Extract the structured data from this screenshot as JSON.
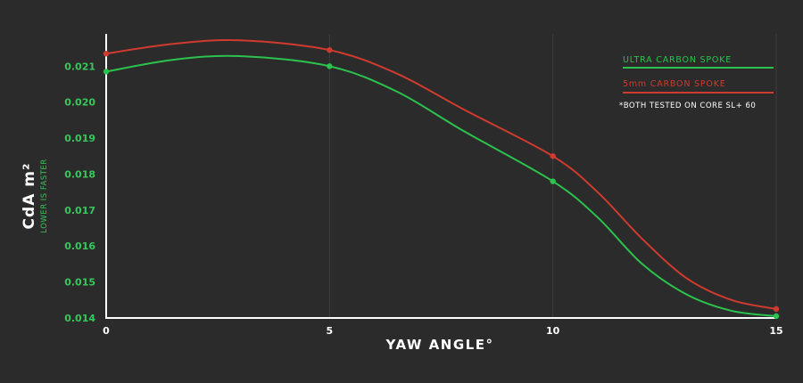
{
  "colors": {
    "background": "#2b2b2b",
    "axis": "#ffffff",
    "grid": "#3e3e3e",
    "green": "#2bc24d",
    "red": "#cf3b2e",
    "tick_green": "#36c85a",
    "text_white": "#ffffff"
  },
  "chart_data": {
    "type": "line",
    "xlabel": "YAW ANGLE°",
    "ylabel": "CdA m²",
    "ysublabel": "LOWER IS FASTER",
    "note": "*BOTH TESTED ON CORE SL+ 60",
    "xlim": [
      0,
      15
    ],
    "ylim": [
      0.014,
      0.0219
    ],
    "x_ticks": [
      0,
      5,
      10,
      15
    ],
    "x_tick_labels": [
      "0",
      "5",
      "10",
      "15"
    ],
    "y_ticks": [
      0.014,
      0.015,
      0.016,
      0.017,
      0.018,
      0.019,
      0.02,
      0.021
    ],
    "y_tick_labels": [
      "0.014",
      "0.015",
      "0.016",
      "0.017",
      "0.018",
      "0.019",
      "0.020",
      "0.021"
    ],
    "grid": "vertical",
    "legend_position": "top-right",
    "series": [
      {
        "name": "ULTRA CARBON SPOKE",
        "color": "#2bc24d",
        "x": [
          0,
          5,
          10,
          15
        ],
        "y": [
          0.02085,
          0.021,
          0.0178,
          0.01405
        ],
        "curve": [
          [
            0,
            0.02085
          ],
          [
            1.5,
            0.02118
          ],
          [
            3,
            0.02128
          ],
          [
            5,
            0.021
          ],
          [
            6.5,
            0.0203
          ],
          [
            8,
            0.0192
          ],
          [
            10,
            0.0178
          ],
          [
            11,
            0.0168
          ],
          [
            12,
            0.0155
          ],
          [
            13,
            0.01465
          ],
          [
            14,
            0.0142
          ],
          [
            15,
            0.01405
          ]
        ]
      },
      {
        "name": "5mm CARBON SPOKE",
        "color": "#cf3b2e",
        "x": [
          0,
          5,
          10,
          15
        ],
        "y": [
          0.02135,
          0.02145,
          0.0185,
          0.01425
        ],
        "curve": [
          [
            0,
            0.02135
          ],
          [
            1.5,
            0.02162
          ],
          [
            3,
            0.02172
          ],
          [
            5,
            0.02145
          ],
          [
            6.5,
            0.0208
          ],
          [
            8,
            0.0198
          ],
          [
            10,
            0.0185
          ],
          [
            11,
            0.0175
          ],
          [
            12,
            0.0162
          ],
          [
            13,
            0.0151
          ],
          [
            14,
            0.0145
          ],
          [
            15,
            0.01425
          ]
        ]
      }
    ]
  }
}
